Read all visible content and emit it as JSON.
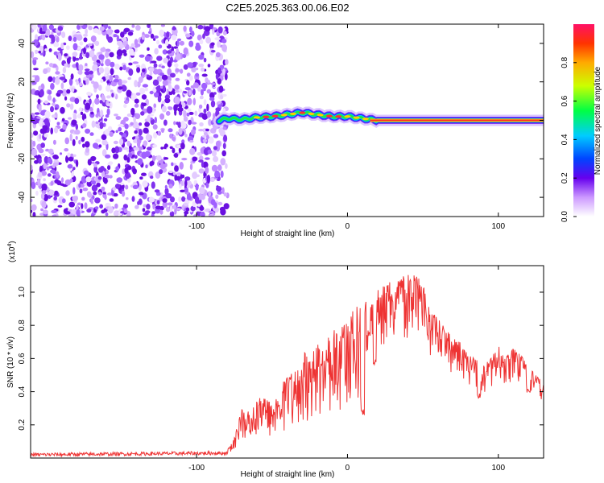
{
  "title": "C2E5.2025.363.00.06.E02",
  "chart_data": [
    {
      "type": "heatmap",
      "name": "spectrogram",
      "xlabel": "Height of straight line (km)",
      "ylabel": "Frequency (Hz)",
      "xlim": [
        -210,
        130
      ],
      "ylim": [
        -50,
        50
      ],
      "xticks": [
        -100,
        0,
        100
      ],
      "xtick_labels": [
        "-100",
        "0",
        "100"
      ],
      "yticks": [
        -40,
        -20,
        0,
        20,
        40
      ],
      "ytick_labels": [
        "-40",
        "-20",
        "0",
        "20",
        "40"
      ],
      "noise_region_x": [
        -210,
        -80
      ],
      "ridge": {
        "x": [
          -85,
          -80,
          -70,
          -60,
          -50,
          -40,
          -30,
          -20,
          -10,
          0,
          10,
          20,
          40,
          60,
          80,
          100,
          120,
          130
        ],
        "frequency": [
          0,
          1,
          0.5,
          1.5,
          2,
          3,
          4,
          3,
          2,
          2,
          1,
          0,
          0,
          0,
          0,
          0,
          0,
          0
        ]
      },
      "colorbar": {
        "label": "Normalized spectral amplitude",
        "range": [
          0,
          1
        ],
        "ticks": [
          0,
          0.2,
          0.4,
          0.6,
          0.8
        ],
        "tick_labels": [
          "0.0",
          "0.2",
          "0.4",
          "0.6",
          "0.8"
        ]
      }
    },
    {
      "type": "line",
      "name": "snr",
      "xlabel": "Height of straight line (km)",
      "ylabel": "SNR (10 * v/v)",
      "multiplier_base": "(x10",
      "multiplier_exp": "4",
      "multiplier_close": ")",
      "xlim": [
        -210,
        130
      ],
      "ylim": [
        0,
        11600
      ],
      "xticks": [
        -100,
        0,
        100
      ],
      "xtick_labels": [
        "-100",
        "0",
        "100"
      ],
      "yticks": [
        2000,
        4000,
        6000,
        8000,
        10000
      ],
      "ytick_labels": [
        "0.2",
        "0.4",
        "0.6",
        "0.8",
        "1.0"
      ],
      "color": "#ee3333",
      "envelope": {
        "x": [
          -210,
          -80,
          -75,
          -70,
          -65,
          -60,
          -55,
          -50,
          -45,
          -40,
          -35,
          -30,
          -25,
          -20,
          -15,
          -10,
          -5,
          0,
          5,
          10,
          15,
          20,
          25,
          30,
          35,
          40,
          45,
          50,
          55,
          60,
          65,
          70,
          75,
          80,
          85,
          90,
          95,
          100,
          105,
          110,
          115,
          120,
          125,
          130
        ],
        "y": [
          200,
          300,
          1200,
          3000,
          2800,
          3500,
          3800,
          3200,
          4500,
          4900,
          5300,
          6500,
          6100,
          6800,
          7200,
          7800,
          8200,
          8500,
          9000,
          9600,
          9200,
          10200,
          10500,
          10700,
          10900,
          11100,
          11000,
          10600,
          8800,
          8500,
          7800,
          7200,
          7000,
          6200,
          6000,
          5600,
          6000,
          6900,
          6100,
          6600,
          6200,
          5500,
          5000,
          4600
        ]
      },
      "dips": [
        {
          "x": 10,
          "y": 2600
        },
        {
          "x": 14,
          "y": 7300
        },
        {
          "x": 18,
          "y": 5600
        },
        {
          "x": 87,
          "y": 3500
        },
        {
          "x": 120,
          "y": 3900
        }
      ]
    }
  ]
}
